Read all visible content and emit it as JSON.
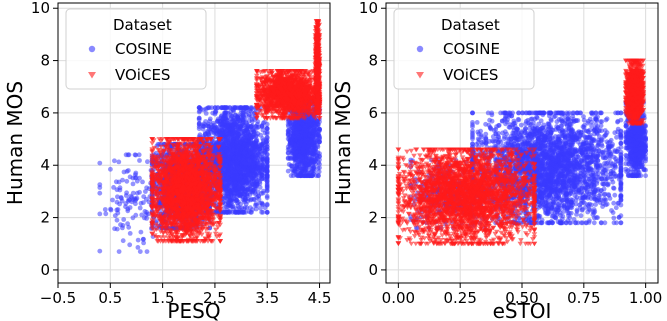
{
  "colors": {
    "cosine": "#3b3bff",
    "voices": "#ff1a1a",
    "grid": "#dcdcdc",
    "axis": "#000000"
  },
  "chart_data": [
    {
      "type": "scatter",
      "title": "",
      "xlabel": "PESQ",
      "ylabel": "Human MOS",
      "xlim": [
        -0.5,
        4.7
      ],
      "ylim": [
        -0.5,
        10.2
      ],
      "xticks": [
        -0.5,
        0.5,
        1.5,
        2.5,
        3.5,
        4.5
      ],
      "xtick_labels": [
        "−0.5",
        "0.5",
        "1.5",
        "2.5",
        "3.5",
        "4.5"
      ],
      "yticks": [
        0,
        2,
        4,
        6,
        8,
        10
      ],
      "ytick_labels": [
        "0",
        "2",
        "4",
        "6",
        "8",
        "10"
      ],
      "grid": true,
      "legend": {
        "title": "Dataset",
        "position": "top-left",
        "entries": [
          {
            "label": "COSINE",
            "marker": "circle",
            "color": "#3b3bff"
          },
          {
            "label": "VOiCES",
            "marker": "triangle-down",
            "color": "#ff1a1a"
          }
        ]
      },
      "series": [
        {
          "name": "COSINE",
          "marker": "circle",
          "clusters": [
            {
              "x_range": [
                1.3,
                2.4
              ],
              "y_range": [
                1.6,
                4.8
              ],
              "n": 1400
            },
            {
              "x_range": [
                2.2,
                3.5
              ],
              "y_range": [
                2.2,
                6.2
              ],
              "n": 2200
            },
            {
              "x_range": [
                3.9,
                4.5
              ],
              "y_range": [
                3.6,
                6.6
              ],
              "n": 1100
            },
            {
              "x_range": [
                0.3,
                1.6
              ],
              "y_range": [
                0.7,
                4.4
              ],
              "n": 140
            }
          ]
        },
        {
          "name": "VOiCES",
          "marker": "triangle-down",
          "clusters": [
            {
              "x_range": [
                1.3,
                2.6
              ],
              "y_range": [
                1.1,
                5.0
              ],
              "n": 2400
            },
            {
              "x_range": [
                3.3,
                4.5
              ],
              "y_range": [
                5.8,
                7.6
              ],
              "n": 1500
            },
            {
              "x_range": [
                4.42,
                4.5
              ],
              "y_range": [
                6.0,
                9.5
              ],
              "n": 500
            }
          ]
        }
      ]
    },
    {
      "type": "scatter",
      "title": "",
      "xlabel": "eSTOI",
      "ylabel": "Human MOS",
      "xlim": [
        -0.05,
        1.05
      ],
      "ylim": [
        -0.5,
        10.2
      ],
      "xticks": [
        0.0,
        0.25,
        0.5,
        0.75,
        1.0
      ],
      "xtick_labels": [
        "0.00",
        "0.25",
        "0.50",
        "0.75",
        "1.00"
      ],
      "yticks": [
        0,
        2,
        4,
        6,
        8,
        10
      ],
      "ytick_labels": [
        "0",
        "2",
        "4",
        "6",
        "8",
        "10"
      ],
      "grid": true,
      "legend": {
        "title": "Dataset",
        "position": "top-left",
        "entries": [
          {
            "label": "COSINE",
            "marker": "circle",
            "color": "#3b3bff"
          },
          {
            "label": "VOiCES",
            "marker": "triangle-down",
            "color": "#ff1a1a"
          }
        ]
      },
      "series": [
        {
          "name": "COSINE",
          "marker": "circle",
          "clusters": [
            {
              "x_range": [
                0.3,
                0.9
              ],
              "y_range": [
                1.8,
                6.0
              ],
              "n": 2800
            },
            {
              "x_range": [
                0.05,
                0.35
              ],
              "y_range": [
                1.6,
                4.2
              ],
              "n": 300
            },
            {
              "x_range": [
                0.92,
                1.0
              ],
              "y_range": [
                3.6,
                6.4
              ],
              "n": 700
            }
          ]
        },
        {
          "name": "VOiCES",
          "marker": "triangle-down",
          "clusters": [
            {
              "x_range": [
                0.0,
                0.55
              ],
              "y_range": [
                1.0,
                4.6
              ],
              "n": 2800
            },
            {
              "x_range": [
                0.92,
                0.99
              ],
              "y_range": [
                5.6,
                8.0
              ],
              "n": 900
            }
          ]
        }
      ]
    }
  ]
}
